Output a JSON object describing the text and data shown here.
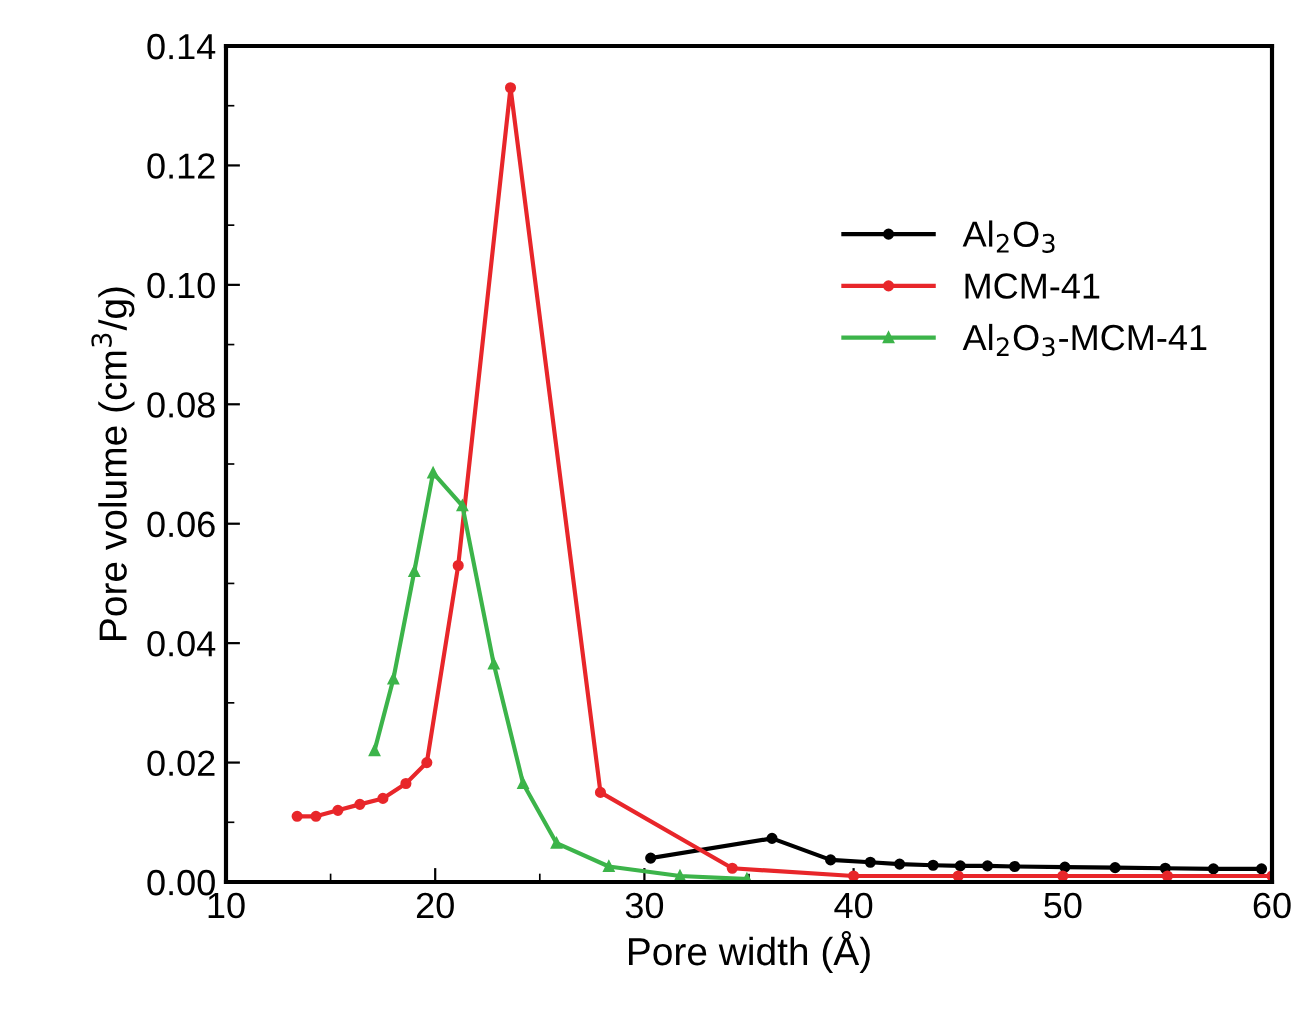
{
  "chart_data": {
    "type": "line",
    "xlabel": "Pore width (Å)",
    "ylabel": "Pore volume (cm$^{3}$/g)",
    "xlim": [
      10,
      60
    ],
    "xticks": [
      10,
      20,
      30,
      40,
      50,
      60
    ],
    "ylim": [
      0,
      0.14
    ],
    "yticks": [
      {
        "value": 0,
        "label": "0.00"
      },
      {
        "value": 0.02,
        "label": "0.02"
      },
      {
        "value": 0.04,
        "label": "0.04"
      },
      {
        "value": 0.06,
        "label": "0.06"
      },
      {
        "value": 0.08,
        "label": "0.08"
      },
      {
        "value": 0.1,
        "label": "0.10"
      },
      {
        "value": 0.12,
        "label": "0.12"
      },
      {
        "value": 0.14,
        "label": "0.14"
      }
    ],
    "grid": false,
    "legend": "top right",
    "series": [
      {
        "name": "Al$_{2}$O$_{3}$",
        "color": "#000000",
        "marker": "circle",
        "x": [
          30.3,
          36.1,
          38.9,
          40.8,
          42.2,
          43.8,
          45.1,
          46.4,
          47.7,
          50.1,
          52.5,
          54.9,
          57.2,
          59.5
        ],
        "values": [
          0.004,
          0.0073,
          0.0037,
          0.0033,
          0.003,
          0.0028,
          0.0027,
          0.0027,
          0.0026,
          0.0025,
          0.0024,
          0.0023,
          0.0022,
          0.0022
        ]
      },
      {
        "name": "MCM-41",
        "color": "#e8262a",
        "marker": "circle",
        "x": [
          13.4,
          14.3,
          15.35,
          16.4,
          17.5,
          18.6,
          19.6,
          21.1,
          23.6,
          27.9,
          34.2,
          40,
          45,
          50,
          55,
          60
        ],
        "values": [
          0.011,
          0.011,
          0.012,
          0.013,
          0.014,
          0.0165,
          0.02,
          0.053,
          0.133,
          0.015,
          0.0023,
          0.001,
          0.001,
          0.001,
          0.001,
          0.001
        ]
      },
      {
        "name": "Al$_{2}$O$_{3}$-MCM-41",
        "color": "#3cb44a",
        "marker": "triangle",
        "x": [
          17.1,
          18.0,
          19.0,
          19.9,
          21.3,
          22.8,
          24.2,
          25.8,
          28.3,
          31.7,
          34.9
        ],
        "values": [
          0.022,
          0.034,
          0.052,
          0.0685,
          0.063,
          0.0365,
          0.0165,
          0.0065,
          0.0026,
          0.001,
          0.0005
        ]
      }
    ]
  }
}
